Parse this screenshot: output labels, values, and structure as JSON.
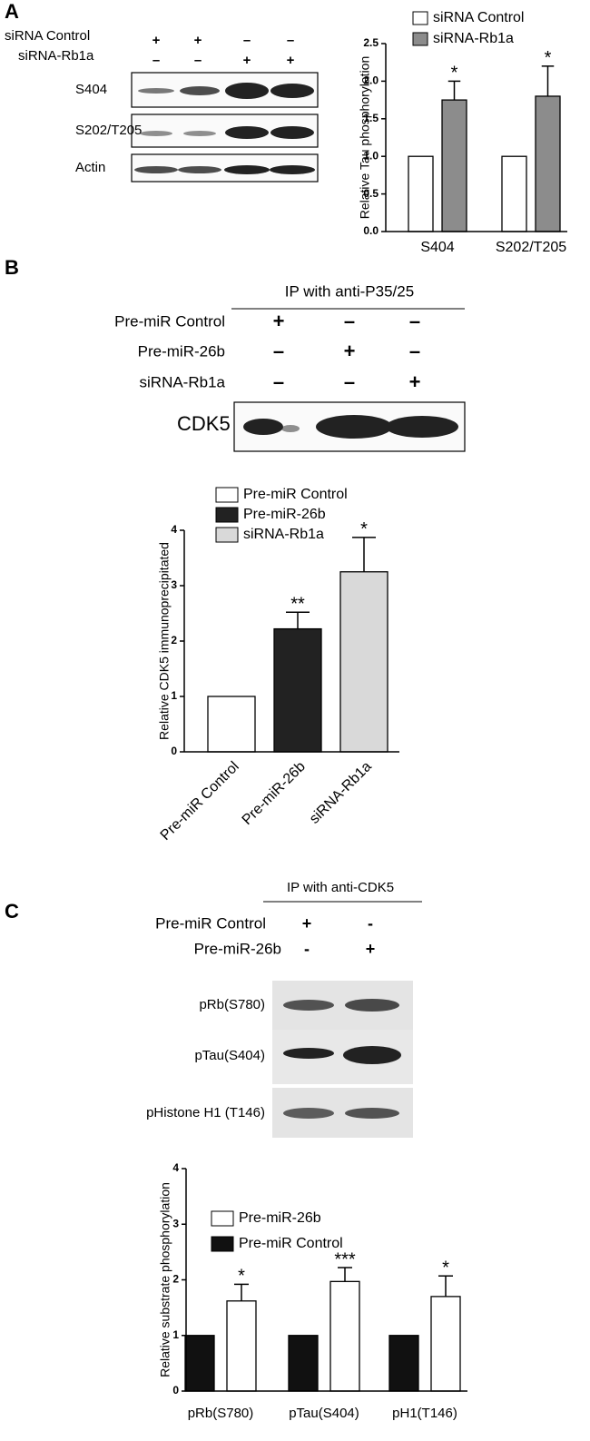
{
  "blot_a": {
    "label": "A",
    "rows": [
      {
        "name": "siRNA Control",
        "signs": [
          "+",
          "+",
          "–",
          "–"
        ]
      },
      {
        "name": "siRNA-Rb1a",
        "signs": [
          "–",
          "–",
          "+",
          "+"
        ]
      }
    ],
    "bands": [
      "S404",
      "S202/T205",
      "Actin"
    ]
  },
  "blot_b": {
    "label": "B",
    "ip": "IP with anti-P35/25",
    "rows": [
      {
        "name": "Pre-miR Control",
        "signs": [
          "+",
          "–",
          "–"
        ]
      },
      {
        "name": "Pre-miR-26b",
        "signs": [
          "–",
          "+",
          "–"
        ]
      },
      {
        "name": "siRNA-Rb1a",
        "signs": [
          "–",
          "–",
          "+"
        ]
      }
    ],
    "bands": [
      "CDK5"
    ]
  },
  "blot_c": {
    "label": "C",
    "ip": "IP with anti-CDK5",
    "rows": [
      {
        "name": "Pre-miR Control",
        "signs": [
          "+",
          "-"
        ]
      },
      {
        "name": "Pre-miR-26b",
        "signs": [
          "-",
          "+"
        ]
      }
    ],
    "bands": [
      "pRb(S780)",
      "pTau(S404)",
      "pHistone H1 (T146)"
    ]
  },
  "chart_data": [
    {
      "type": "bar",
      "ylabel": "Relative Tau phosphorylation",
      "categories": [
        "S404",
        "S202/T205"
      ],
      "series": [
        {
          "name": "siRNA Control",
          "color": "#ffffff",
          "values": [
            1,
            1
          ]
        },
        {
          "name": "siRNA-Rb1a",
          "color": "#8c8c8c",
          "values": [
            1.75,
            1.8
          ],
          "errors": [
            0.25,
            0.4
          ],
          "annotations": [
            "*",
            "*"
          ]
        }
      ],
      "ylim": [
        0,
        2.5
      ],
      "yticks": [
        {
          "value": 0,
          "label": "0.0"
        },
        {
          "value": 0.5,
          "label": "0.5"
        },
        {
          "value": 1,
          "label": "1.0"
        },
        {
          "value": 1.5,
          "label": "1.5"
        },
        {
          "value": 2,
          "label": "2.0"
        },
        {
          "value": 2.5,
          "label": "2.5"
        }
      ]
    },
    {
      "type": "bar",
      "ylabel": "Relative CDK5 immunoprecipitated",
      "categories": [
        "Pre-miR Control",
        "Pre-miR-26b",
        "siRNA-Rb1a"
      ],
      "values": [
        1,
        2.22,
        3.25
      ],
      "errors": [
        null,
        0.3,
        0.62
      ],
      "annotations": [
        null,
        "**",
        "*"
      ],
      "colors": [
        "#ffffff",
        "#222222",
        "#d9d9d9"
      ],
      "ylim": [
        0,
        4
      ],
      "yticks": [
        0,
        1,
        2,
        3,
        4
      ]
    },
    {
      "type": "bar",
      "ylabel": "Relative substrate phosphorylation",
      "categories": [
        "pRb(S780)",
        "pTau(S404)",
        "pH1(T146)"
      ],
      "series": [
        {
          "name": "Pre-miR Control",
          "color": "#111111",
          "values": [
            1,
            1,
            1
          ]
        },
        {
          "name": "Pre-miR-26b",
          "color": "#ffffff",
          "values": [
            1.62,
            1.97,
            1.7
          ],
          "errors": [
            0.3,
            0.25,
            0.37
          ],
          "annotations": [
            "*",
            "***",
            "*"
          ]
        }
      ],
      "ylim": [
        0,
        4
      ],
      "yticks": [
        0,
        1,
        2,
        3,
        4
      ]
    }
  ]
}
